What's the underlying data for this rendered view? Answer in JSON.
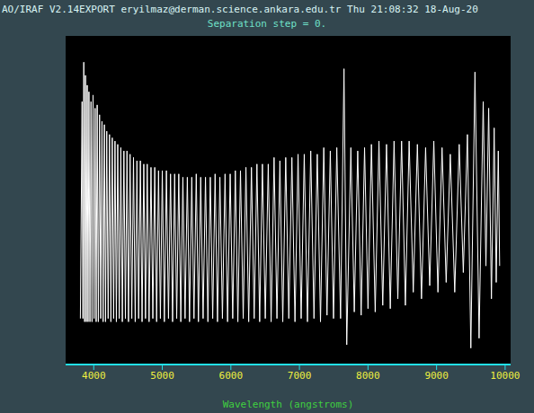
{
  "header": "AO/IRAF V2.14EXPORT eryilmaz@derman.science.ankara.edu.tr Thu 21:08:32 18-Aug-20",
  "chart_data": {
    "type": "line",
    "title": "Separation step = 0.",
    "x_label": "Wavelength (angstroms)",
    "color": "#ffffff",
    "tick_labels": "x",
    "xlim": [
      3590,
      10080
    ],
    "xticks": [
      4000,
      5000,
      6000,
      7000,
      8000,
      9000,
      10000
    ],
    "ylim": [
      0,
      100
    ],
    "x": [
      3805,
      3830,
      3842,
      3855,
      3867,
      3880,
      3892,
      3905,
      3917,
      3930,
      3945,
      3960,
      3975,
      3990,
      4005,
      4020,
      4035,
      4050,
      4067,
      4085,
      4102,
      4120,
      4137,
      4155,
      4172,
      4190,
      4210,
      4230,
      4250,
      4270,
      4290,
      4310,
      4330,
      4350,
      4372,
      4395,
      4417,
      4440,
      4462,
      4485,
      4507,
      4530,
      4555,
      4580,
      4605,
      4630,
      4655,
      4680,
      4705,
      4730,
      4755,
      4780,
      4807,
      4835,
      4862,
      4890,
      4917,
      4945,
      4972,
      5000,
      5030,
      5060,
      5090,
      5120,
      5150,
      5180,
      5210,
      5240,
      5270,
      5300,
      5332,
      5365,
      5397,
      5430,
      5462,
      5495,
      5527,
      5560,
      5595,
      5630,
      5665,
      5700,
      5735,
      5770,
      5805,
      5840,
      5877,
      5915,
      5952,
      5990,
      6027,
      6065,
      6102,
      6140,
      6180,
      6220,
      6260,
      6300,
      6340,
      6380,
      6420,
      6460,
      6502,
      6545,
      6587,
      6630,
      6672,
      6715,
      6757,
      6800,
      6845,
      6890,
      6935,
      6980,
      7025,
      7070,
      7117,
      7165,
      7212,
      7260,
      7307,
      7355,
      7402,
      7450,
      7497,
      7545,
      7600,
      7650,
      7690,
      7750,
      7800,
      7850,
      7900,
      7950,
      8000,
      8050,
      8105,
      8160,
      8215,
      8270,
      8325,
      8380,
      8435,
      8490,
      8545,
      8600,
      8660,
      8720,
      8780,
      8840,
      8900,
      8960,
      9020,
      9080,
      9140,
      9200,
      9265,
      9330,
      9390,
      9450,
      9500,
      9560,
      9620,
      9680,
      9720,
      9760,
      9800,
      9840,
      9870,
      9900,
      9920
    ],
    "values": [
      14,
      80,
      14,
      92,
      13,
      88,
      13,
      85,
      13,
      83,
      13,
      80,
      13,
      82,
      14,
      78,
      13,
      79,
      13,
      76,
      14,
      74,
      13,
      73,
      13,
      71,
      14,
      70,
      13,
      69,
      14,
      68,
      13,
      67,
      14,
      66,
      13,
      65,
      14,
      65,
      13,
      64,
      14,
      63,
      13,
      62,
      14,
      62,
      13,
      61,
      14,
      61,
      13,
      60,
      14,
      60,
      13,
      59,
      14,
      59,
      13,
      59,
      14,
      58,
      13,
      58,
      14,
      58,
      13,
      57,
      14,
      57,
      13,
      57,
      14,
      58,
      13,
      57,
      14,
      57,
      13,
      57,
      14,
      58,
      13,
      57,
      14,
      58,
      13,
      58,
      14,
      59,
      13,
      59,
      14,
      60,
      13,
      60,
      14,
      61,
      13,
      61,
      14,
      61,
      13,
      63,
      14,
      62,
      13,
      63,
      14,
      63,
      13,
      64,
      14,
      64,
      13,
      65,
      14,
      64,
      13,
      66,
      15,
      65,
      14,
      66,
      14,
      90,
      6,
      66,
      16,
      65,
      15,
      66,
      17,
      67,
      16,
      68,
      18,
      67,
      17,
      68,
      20,
      68,
      18,
      68,
      22,
      67,
      20,
      66,
      24,
      68,
      22,
      66,
      25,
      64,
      22,
      67,
      28,
      70,
      5,
      89,
      8,
      80,
      30,
      78,
      20,
      72,
      25,
      65,
      30
    ]
  }
}
